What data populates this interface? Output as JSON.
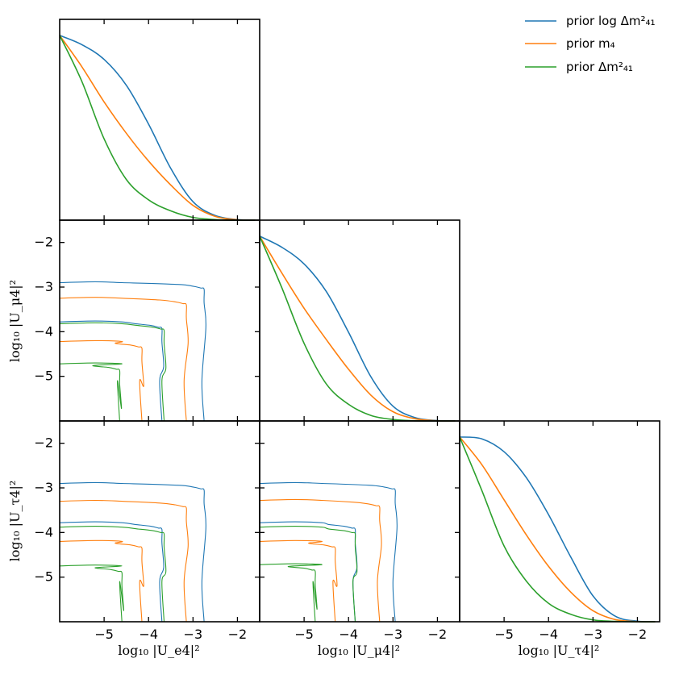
{
  "chart_data": {
    "type": "line",
    "kind": "corner plot (posterior marginals and 2D credible contours)",
    "colors": {
      "blue": "#1f77b4",
      "orange": "#ff7f0e",
      "green": "#2ca02c"
    },
    "legend": {
      "placement": "top-right",
      "entries": [
        {
          "label": "prior log Δm²₄₁",
          "color": "#1f77b4"
        },
        {
          "label": "prior m₄",
          "color": "#ff7f0e"
        },
        {
          "label": "prior Δm²₄₁",
          "color": "#2ca02c"
        }
      ]
    },
    "axes": {
      "xlim": [
        -6,
        -1.5
      ],
      "ylim": [
        -6,
        -1.5
      ],
      "ticks": [
        -5,
        -4,
        -3,
        -2
      ],
      "tick_labels": [
        "−5",
        "−4",
        "−3",
        "−2"
      ],
      "xlabels": [
        "log₁₀ |U_e4|²",
        "log₁₀ |U_μ4|²",
        "log₁₀ |U_τ4|²"
      ],
      "ylabels": [
        "log₁₀ |U_μ4|²",
        "log₁₀ |U_τ4|²"
      ]
    },
    "marginals": [
      {
        "panel": "U_e4",
        "x": [
          -6,
          -5.5,
          -5,
          -4.5,
          -4,
          -3.5,
          -3,
          -2.5,
          -2,
          -1.6
        ],
        "series": [
          {
            "name": "prior log Δm²₄₁",
            "color": "#1f77b4",
            "values": [
              1.0,
              0.95,
              0.87,
              0.73,
              0.52,
              0.28,
              0.1,
              0.025,
              0.003,
              0.0
            ]
          },
          {
            "name": "prior m₄",
            "color": "#ff7f0e",
            "values": [
              1.0,
              0.83,
              0.64,
              0.47,
              0.32,
              0.19,
              0.08,
              0.02,
              0.002,
              0.0
            ]
          },
          {
            "name": "prior Δm²₄₁",
            "color": "#2ca02c",
            "values": [
              1.0,
              0.75,
              0.44,
              0.22,
              0.11,
              0.05,
              0.015,
              0.003,
              0.0,
              0.0
            ]
          }
        ]
      },
      {
        "panel": "U_μ4",
        "x": [
          -6,
          -5.5,
          -5,
          -4.5,
          -4,
          -3.5,
          -3,
          -2.5,
          -2,
          -1.6
        ],
        "series": [
          {
            "name": "prior log Δm²₄₁",
            "color": "#1f77b4",
            "values": [
              1.0,
              0.94,
              0.85,
              0.7,
              0.48,
              0.24,
              0.08,
              0.018,
              0.002,
              0.0
            ]
          },
          {
            "name": "prior m₄",
            "color": "#ff7f0e",
            "values": [
              1.0,
              0.8,
              0.61,
              0.44,
              0.28,
              0.14,
              0.05,
              0.012,
              0.001,
              0.0
            ]
          },
          {
            "name": "prior Δm²₄₁",
            "color": "#2ca02c",
            "values": [
              1.0,
              0.72,
              0.42,
              0.2,
              0.09,
              0.03,
              0.008,
              0.001,
              0.0,
              0.0
            ]
          }
        ]
      },
      {
        "panel": "U_τ4",
        "x": [
          -6,
          -5.5,
          -5,
          -4.5,
          -4,
          -3.5,
          -3,
          -2.5,
          -2,
          -1.6
        ],
        "series": [
          {
            "name": "prior log Δm²₄₁",
            "color": "#1f77b4",
            "values": [
              1.0,
              0.99,
              0.92,
              0.78,
              0.58,
              0.35,
              0.14,
              0.03,
              0.003,
              0.0
            ]
          },
          {
            "name": "prior m₄",
            "color": "#ff7f0e",
            "values": [
              1.0,
              0.85,
              0.66,
              0.47,
              0.3,
              0.16,
              0.06,
              0.012,
              0.001,
              0.0
            ]
          },
          {
            "name": "prior Δm²₄₁",
            "color": "#2ca02c",
            "values": [
              1.0,
              0.71,
              0.41,
              0.22,
              0.1,
              0.04,
              0.01,
              0.002,
              0.0,
              0.0
            ]
          }
        ]
      }
    ],
    "contours": [
      {
        "panel": "U_e4 vs U_μ4",
        "lines": [
          {
            "prior": "prior log Δm²₄₁",
            "level": "outer",
            "color": "#1f77b4",
            "x_edge": -2.75,
            "y_edge": -2.9
          },
          {
            "prior": "prior log Δm²₄₁",
            "level": "inner",
            "color": "#1f77b4",
            "x_edge": -3.7,
            "y_edge": -3.78
          },
          {
            "prior": "prior m₄",
            "level": "outer",
            "color": "#ff7f0e",
            "x_edge": -3.15,
            "y_edge": -3.25
          },
          {
            "prior": "prior m₄",
            "level": "inner",
            "color": "#ff7f0e",
            "x_edge": -4.15,
            "y_edge": -4.22
          },
          {
            "prior": "prior Δm²₄₁",
            "level": "outer",
            "color": "#2ca02c",
            "x_edge": -3.65,
            "y_edge": -3.82
          },
          {
            "prior": "prior Δm²₄₁",
            "level": "inner",
            "color": "#2ca02c",
            "x_edge": -4.65,
            "y_edge": -4.72
          }
        ]
      },
      {
        "panel": "U_e4 vs U_τ4",
        "lines": [
          {
            "prior": "prior log Δm²₄₁",
            "level": "outer",
            "color": "#1f77b4",
            "x_edge": -2.75,
            "y_edge": -2.9
          },
          {
            "prior": "prior log Δm²₄₁",
            "level": "inner",
            "color": "#1f77b4",
            "x_edge": -3.7,
            "y_edge": -3.78
          },
          {
            "prior": "prior m₄",
            "level": "outer",
            "color": "#ff7f0e",
            "x_edge": -3.15,
            "y_edge": -3.3
          },
          {
            "prior": "prior m₄",
            "level": "inner",
            "color": "#ff7f0e",
            "x_edge": -4.15,
            "y_edge": -4.2
          },
          {
            "prior": "prior Δm²₄₁",
            "level": "outer",
            "color": "#2ca02c",
            "x_edge": -3.65,
            "y_edge": -3.88
          },
          {
            "prior": "prior Δm²₄₁",
            "level": "inner",
            "color": "#2ca02c",
            "x_edge": -4.6,
            "y_edge": -4.75
          }
        ]
      },
      {
        "panel": "U_μ4 vs U_τ4",
        "lines": [
          {
            "prior": "prior log Δm²₄₁",
            "level": "outer",
            "color": "#1f77b4",
            "x_edge": -2.95,
            "y_edge": -2.9
          },
          {
            "prior": "prior log Δm²₄₁",
            "level": "inner",
            "color": "#1f77b4",
            "x_edge": -3.85,
            "y_edge": -3.78
          },
          {
            "prior": "prior m₄",
            "level": "outer",
            "color": "#ff7f0e",
            "x_edge": -3.3,
            "y_edge": -3.28
          },
          {
            "prior": "prior m₄",
            "level": "inner",
            "color": "#ff7f0e",
            "x_edge": -4.3,
            "y_edge": -4.2
          },
          {
            "prior": "prior Δm²₄₁",
            "level": "outer",
            "color": "#2ca02c",
            "x_edge": -3.85,
            "y_edge": -3.88
          },
          {
            "prior": "prior Δm²₄₁",
            "level": "inner",
            "color": "#2ca02c",
            "x_edge": -4.75,
            "y_edge": -4.72
          }
        ]
      }
    ]
  }
}
